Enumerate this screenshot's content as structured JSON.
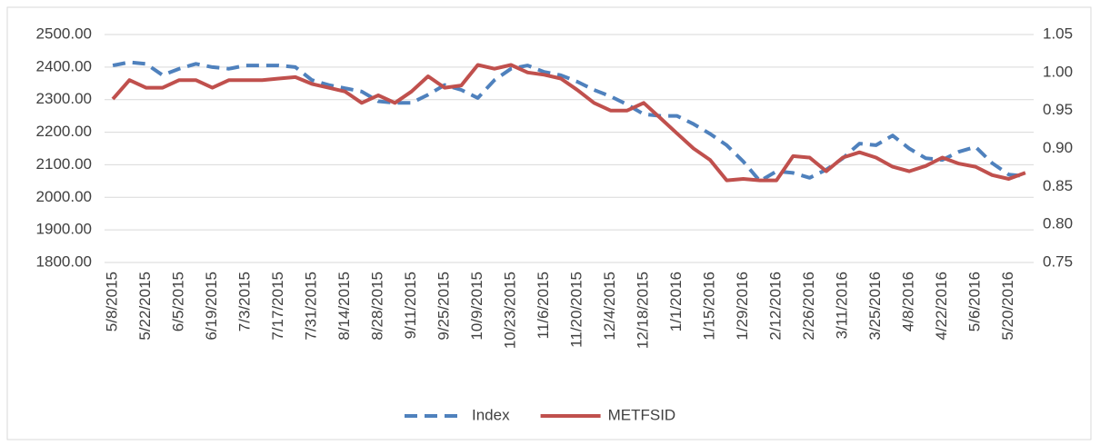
{
  "chart_data": {
    "type": "line",
    "categories": [
      "5/8/2015",
      null,
      "5/22/2015",
      null,
      "6/5/2015",
      null,
      "6/19/2015",
      null,
      "7/3/2015",
      null,
      "7/17/2015",
      null,
      "7/31/2015",
      null,
      "8/14/2015",
      null,
      "8/28/2015",
      null,
      "9/11/2015",
      null,
      "9/25/2015",
      null,
      "10/9/2015",
      null,
      "10/23/2015",
      null,
      "11/6/2015",
      null,
      "11/20/2015",
      null,
      "12/4/2015",
      null,
      "12/18/2015",
      null,
      "1/1/2016",
      null,
      "1/15/2016",
      null,
      "1/29/2016",
      null,
      "2/12/2016",
      null,
      "2/26/2016",
      null,
      "3/11/2016",
      null,
      "3/25/2016",
      null,
      "4/8/2016",
      null,
      "4/22/2016",
      null,
      "5/6/2016",
      null,
      "5/20/2016",
      null
    ],
    "series": [
      {
        "name": "Index",
        "color": "#4f81bd",
        "dashed": true,
        "values": [
          2405,
          2415,
          2410,
          2375,
          2395,
          2410,
          2400,
          2395,
          2405,
          2405,
          2405,
          2400,
          2360,
          2345,
          2335,
          2325,
          2295,
          2290,
          2290,
          2315,
          2345,
          2330,
          2305,
          2360,
          2395,
          2405,
          2385,
          2375,
          2355,
          2330,
          2310,
          2285,
          2255,
          2250,
          2250,
          2225,
          2195,
          2160,
          2110,
          2050,
          2080,
          2075,
          2060,
          2085,
          2120,
          2165,
          2160,
          2190,
          2150,
          2120,
          2115,
          2140,
          2155,
          2105,
          2070,
          2065
        ]
      },
      {
        "name": "METFSID",
        "color": "#c0504d",
        "axis": "y2",
        "values": [
          0.965,
          0.99,
          0.98,
          0.98,
          0.99,
          0.99,
          0.98,
          0.99,
          0.99,
          0.99,
          0.992,
          0.994,
          0.985,
          0.98,
          0.975,
          0.96,
          0.97,
          0.96,
          0.975,
          0.995,
          0.98,
          0.983,
          1.01,
          1.005,
          1.01,
          1.0,
          0.997,
          0.992,
          0.977,
          0.96,
          0.95,
          0.95,
          0.96,
          0.94,
          0.92,
          0.9,
          0.885,
          0.858,
          0.86,
          0.858,
          0.858,
          0.89,
          0.888,
          0.87,
          0.888,
          0.895,
          0.888,
          0.876,
          0.87,
          0.877,
          0.888,
          0.88,
          0.876,
          0.865,
          0.86,
          0.868
        ]
      }
    ],
    "ylim": [
      1800,
      2500
    ],
    "yticks": [
      {
        "value": 1800,
        "label": "1800.00"
      },
      {
        "value": 1900,
        "label": "1900.00"
      },
      {
        "value": 2000,
        "label": "2000.00"
      },
      {
        "value": 2100,
        "label": "2100.00"
      },
      {
        "value": 2200,
        "label": "2200.00"
      },
      {
        "value": 2300,
        "label": "2300.00"
      },
      {
        "value": 2400,
        "label": "2400.00"
      },
      {
        "value": 2500,
        "label": "2500.00"
      }
    ],
    "y2lim": [
      0.75,
      1.05
    ],
    "y2ticks": [
      0.75,
      {
        "value": 0.8,
        "label": "0.80"
      },
      0.85,
      {
        "value": 0.9,
        "label": "0.90"
      },
      0.95,
      {
        "value": 1.0,
        "label": "1.00"
      },
      1.05
    ],
    "grid": true,
    "legend": "bottom"
  }
}
